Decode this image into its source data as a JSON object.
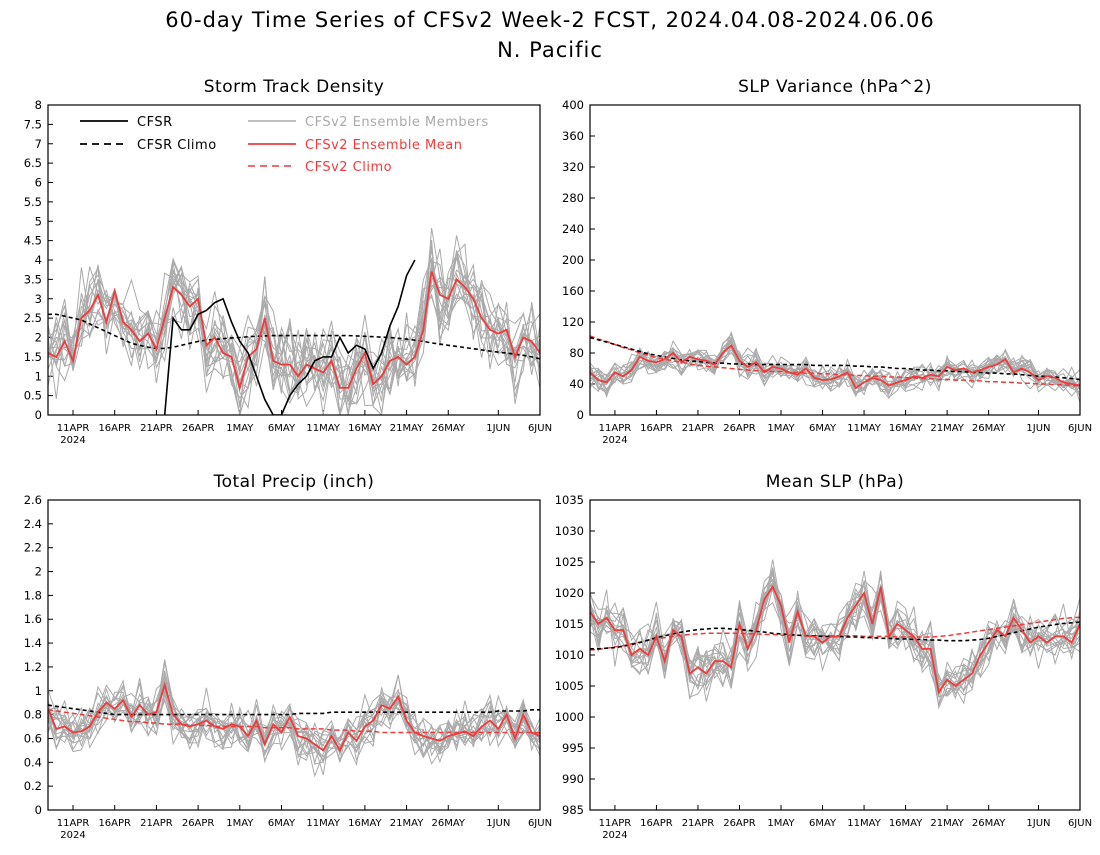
{
  "title": {
    "line1": "60-day Time Series of CFSv2 Week-2 FCST, 2024.04.08-2024.06.06",
    "line2": "N. Pacific"
  },
  "colors": {
    "cfsr": "#000000",
    "cfsr_climo": "#000000",
    "members": "#aaaaaa",
    "ens_mean": "#ee3b3b",
    "cfs_climo": "#ee3b3b"
  },
  "x_axis": {
    "start_day": "2024-04-08",
    "days": 60,
    "tick_labels": [
      "11APR",
      "16APR",
      "21APR",
      "26APR",
      "1MAY",
      "6MAY",
      "11MAY",
      "16MAY",
      "21MAY",
      "26MAY",
      "1JUN",
      "6JUN"
    ],
    "year_label": "2024"
  },
  "legend": {
    "cfsr": "CFSR",
    "cfsr_climo": "CFSR Climo",
    "members": "CFSv2 Ensemble Members",
    "ens_mean": "CFSv2 Ensemble Mean",
    "cfs_climo": "CFSv2 Climo"
  },
  "chart_data": [
    {
      "type": "line",
      "title": "Storm Track Density",
      "ylim": [
        0,
        8
      ],
      "yticks": [
        "0",
        "0.5",
        "1",
        "1.5",
        "2",
        "2.5",
        "3",
        "3.5",
        "4",
        "4.5",
        "5",
        "5.5",
        "6",
        "6.5",
        "7",
        "7.5",
        "8"
      ],
      "ens_mean": [
        1.6,
        1.5,
        1.9,
        1.4,
        2.5,
        2.7,
        3.1,
        2.4,
        3.2,
        2.4,
        2.2,
        1.9,
        2.1,
        1.7,
        2.5,
        3.3,
        3.1,
        2.8,
        3.0,
        1.8,
        2.0,
        1.6,
        1.5,
        0.7,
        1.5,
        1.7,
        2.5,
        1.4,
        1.3,
        1.3,
        1.0,
        1.3,
        1.2,
        1.1,
        1.4,
        0.7,
        0.7,
        1.2,
        1.6,
        0.8,
        1.0,
        1.4,
        1.5,
        1.3,
        1.5,
        2.2,
        3.7,
        3.1,
        3.0,
        3.5,
        3.3,
        3.0,
        2.5,
        2.2,
        2.1,
        2.2,
        1.5,
        2.0,
        1.9,
        1.6
      ],
      "cfsr": [
        null,
        null,
        null,
        null,
        null,
        null,
        null,
        null,
        null,
        null,
        null,
        null,
        null,
        null,
        0.0,
        2.5,
        2.2,
        2.2,
        2.6,
        2.7,
        2.9,
        3.0,
        2.4,
        1.9,
        1.6,
        1.0,
        0.4,
        0.0,
        0.0,
        0.5,
        0.8,
        1.0,
        1.4,
        1.5,
        1.5,
        2.0,
        1.6,
        1.8,
        1.7,
        1.2,
        1.6,
        2.3,
        2.8,
        3.6,
        4.0,
        null,
        null,
        null,
        null,
        null,
        null,
        null,
        null,
        null,
        null,
        null,
        null,
        null,
        null,
        null
      ],
      "cfsr_climo": [
        2.6,
        2.6,
        2.55,
        2.5,
        2.45,
        2.35,
        2.25,
        2.15,
        2.05,
        1.95,
        1.85,
        1.8,
        1.75,
        1.72,
        1.72,
        1.75,
        1.8,
        1.85,
        1.9,
        1.93,
        1.95,
        1.97,
        1.99,
        2.0,
        2.02,
        2.03,
        2.04,
        2.05,
        2.05,
        2.05,
        2.05,
        2.05,
        2.05,
        2.05,
        2.05,
        2.05,
        2.05,
        2.04,
        2.03,
        2.02,
        2.01,
        2.0,
        1.98,
        1.96,
        1.93,
        1.9,
        1.86,
        1.83,
        1.8,
        1.77,
        1.74,
        1.71,
        1.68,
        1.65,
        1.62,
        1.6,
        1.57,
        1.54,
        1.5,
        1.45
      ]
    },
    {
      "type": "line",
      "title": "SLP Variance (hPa^2)",
      "ylim": [
        0,
        400
      ],
      "yticks": [
        "0",
        "40",
        "80",
        "120",
        "160",
        "200",
        "240",
        "280",
        "320",
        "360",
        "400"
      ],
      "ens_mean": [
        55,
        45,
        42,
        55,
        50,
        58,
        75,
        70,
        68,
        72,
        80,
        68,
        75,
        72,
        70,
        65,
        80,
        90,
        70,
        62,
        68,
        55,
        62,
        60,
        55,
        52,
        60,
        48,
        45,
        46,
        50,
        55,
        35,
        42,
        48,
        45,
        38,
        42,
        45,
        50,
        48,
        52,
        50,
        62,
        58,
        60,
        55,
        58,
        62,
        65,
        72,
        55,
        60,
        55,
        45,
        50,
        48,
        42,
        40,
        38
      ],
      "cfsr_climo": [
        100,
        97,
        94,
        91,
        88,
        85,
        82,
        79,
        77,
        75,
        73,
        71,
        70,
        69,
        68,
        67,
        67,
        66,
        66,
        66,
        65,
        65,
        65,
        65,
        65,
        65,
        65,
        64,
        64,
        64,
        64,
        64,
        63,
        63,
        62,
        62,
        61,
        60,
        60,
        59,
        58,
        58,
        57,
        57,
        56,
        56,
        55,
        55,
        54,
        54,
        53,
        53,
        52,
        51,
        50,
        50,
        49,
        48,
        47,
        46
      ],
      "cfs_climo": [
        102,
        98,
        95,
        91,
        87,
        84,
        80,
        77,
        74,
        72,
        70,
        68,
        66,
        64,
        63,
        62,
        61,
        60,
        59,
        58,
        57,
        57,
        56,
        56,
        55,
        55,
        54,
        54,
        53,
        53,
        52,
        52,
        51,
        51,
        50,
        50,
        49,
        49,
        48,
        48,
        47,
        47,
        46,
        46,
        45,
        45,
        44,
        44,
        43,
        43,
        42,
        42,
        41,
        41,
        40,
        40,
        39,
        39,
        38,
        38
      ]
    },
    {
      "type": "line",
      "title": "Total Precip (inch)",
      "ylim": [
        0,
        2.6
      ],
      "yticks": [
        "0",
        "0.2",
        "0.4",
        "0.6",
        "0.8",
        "1",
        "1.2",
        "1.4",
        "1.6",
        "1.8",
        "2",
        "2.2",
        "2.4",
        "2.6"
      ],
      "ens_mean": [
        0.85,
        0.68,
        0.7,
        0.65,
        0.66,
        0.7,
        0.82,
        0.9,
        0.85,
        0.92,
        0.78,
        0.88,
        0.8,
        0.82,
        1.05,
        0.8,
        0.72,
        0.7,
        0.72,
        0.75,
        0.7,
        0.68,
        0.72,
        0.7,
        0.62,
        0.75,
        0.55,
        0.72,
        0.65,
        0.78,
        0.62,
        0.6,
        0.55,
        0.5,
        0.62,
        0.5,
        0.65,
        0.58,
        0.7,
        0.75,
        0.88,
        0.85,
        0.95,
        0.75,
        0.65,
        0.62,
        0.6,
        0.58,
        0.62,
        0.64,
        0.66,
        0.62,
        0.7,
        0.75,
        0.68,
        0.8,
        0.6,
        0.8,
        0.65,
        0.62
      ],
      "cfsr_climo": [
        0.88,
        0.87,
        0.86,
        0.85,
        0.84,
        0.83,
        0.82,
        0.81,
        0.8,
        0.8,
        0.8,
        0.8,
        0.8,
        0.8,
        0.8,
        0.8,
        0.8,
        0.8,
        0.8,
        0.8,
        0.8,
        0.8,
        0.8,
        0.8,
        0.8,
        0.8,
        0.8,
        0.8,
        0.8,
        0.8,
        0.81,
        0.81,
        0.81,
        0.81,
        0.82,
        0.82,
        0.82,
        0.82,
        0.82,
        0.82,
        0.82,
        0.82,
        0.82,
        0.82,
        0.82,
        0.82,
        0.82,
        0.82,
        0.82,
        0.82,
        0.82,
        0.82,
        0.82,
        0.82,
        0.83,
        0.83,
        0.83,
        0.83,
        0.84,
        0.84
      ],
      "cfs_climo": [
        0.84,
        0.83,
        0.82,
        0.81,
        0.8,
        0.79,
        0.78,
        0.77,
        0.76,
        0.75,
        0.74,
        0.74,
        0.73,
        0.73,
        0.72,
        0.72,
        0.72,
        0.71,
        0.71,
        0.71,
        0.7,
        0.7,
        0.7,
        0.7,
        0.7,
        0.7,
        0.69,
        0.69,
        0.69,
        0.69,
        0.68,
        0.68,
        0.68,
        0.68,
        0.67,
        0.67,
        0.67,
        0.66,
        0.66,
        0.66,
        0.65,
        0.65,
        0.65,
        0.65,
        0.65,
        0.65,
        0.65,
        0.65,
        0.65,
        0.65,
        0.65,
        0.65,
        0.65,
        0.65,
        0.65,
        0.65,
        0.65,
        0.65,
        0.65,
        0.65
      ]
    },
    {
      "type": "line",
      "title": "Mean SLP (hPa)",
      "ylim": [
        985,
        1035
      ],
      "yticks": [
        "985",
        "990",
        "995",
        "1000",
        "1005",
        "1010",
        "1015",
        "1020",
        "1025",
        "1030",
        "1035"
      ],
      "ens_mean": [
        1017,
        1015,
        1016,
        1014,
        1014,
        1010,
        1011,
        1010,
        1013,
        1009,
        1014,
        1013,
        1007,
        1008,
        1007,
        1009,
        1009,
        1008,
        1015,
        1011,
        1014,
        1019,
        1021,
        1018,
        1012,
        1017,
        1013,
        1013,
        1012,
        1013,
        1013,
        1016,
        1018,
        1020,
        1015,
        1021,
        1013,
        1015,
        1014,
        1013,
        1011,
        1011,
        1004,
        1006,
        1005,
        1006,
        1007,
        1010,
        1012,
        1014,
        1013,
        1016,
        1014,
        1012,
        1013,
        1012,
        1013,
        1013,
        1012,
        1015
      ],
      "cfsr_climo": [
        1011,
        1011,
        1011.1,
        1011.2,
        1011.4,
        1011.7,
        1012,
        1012.4,
        1012.8,
        1013.1,
        1013.4,
        1013.7,
        1013.9,
        1014.1,
        1014.2,
        1014.3,
        1014.3,
        1014.2,
        1014.1,
        1014,
        1013.8,
        1013.7,
        1013.5,
        1013.4,
        1013.3,
        1013.2,
        1013.1,
        1013.1,
        1013,
        1013,
        1013,
        1012.9,
        1012.9,
        1012.8,
        1012.8,
        1012.7,
        1012.7,
        1012.6,
        1012.6,
        1012.5,
        1012.5,
        1012.4,
        1012.4,
        1012.3,
        1012.3,
        1012.3,
        1012.4,
        1012.5,
        1012.7,
        1013,
        1013.3,
        1013.6,
        1013.9,
        1014.2,
        1014.5,
        1014.7,
        1014.9,
        1015.1,
        1015.2,
        1015.3
      ],
      "cfs_climo": [
        1010.8,
        1010.9,
        1011.1,
        1011.3,
        1011.5,
        1011.8,
        1012.1,
        1012.4,
        1012.6,
        1012.8,
        1013,
        1013.2,
        1013.3,
        1013.4,
        1013.5,
        1013.5,
        1013.5,
        1013.5,
        1013.5,
        1013.4,
        1013.4,
        1013.3,
        1013.3,
        1013.2,
        1013.2,
        1013.2,
        1013.1,
        1013.1,
        1013.1,
        1013.1,
        1013.1,
        1013.1,
        1013.1,
        1013,
        1013,
        1013,
        1013,
        1012.9,
        1012.9,
        1012.9,
        1012.9,
        1012.9,
        1013,
        1013.1,
        1013.3,
        1013.5,
        1013.7,
        1013.9,
        1014.1,
        1014.3,
        1014.5,
        1014.7,
        1014.9,
        1015.1,
        1015.3,
        1015.5,
        1015.7,
        1015.9,
        1016,
        1016.1
      ]
    }
  ]
}
